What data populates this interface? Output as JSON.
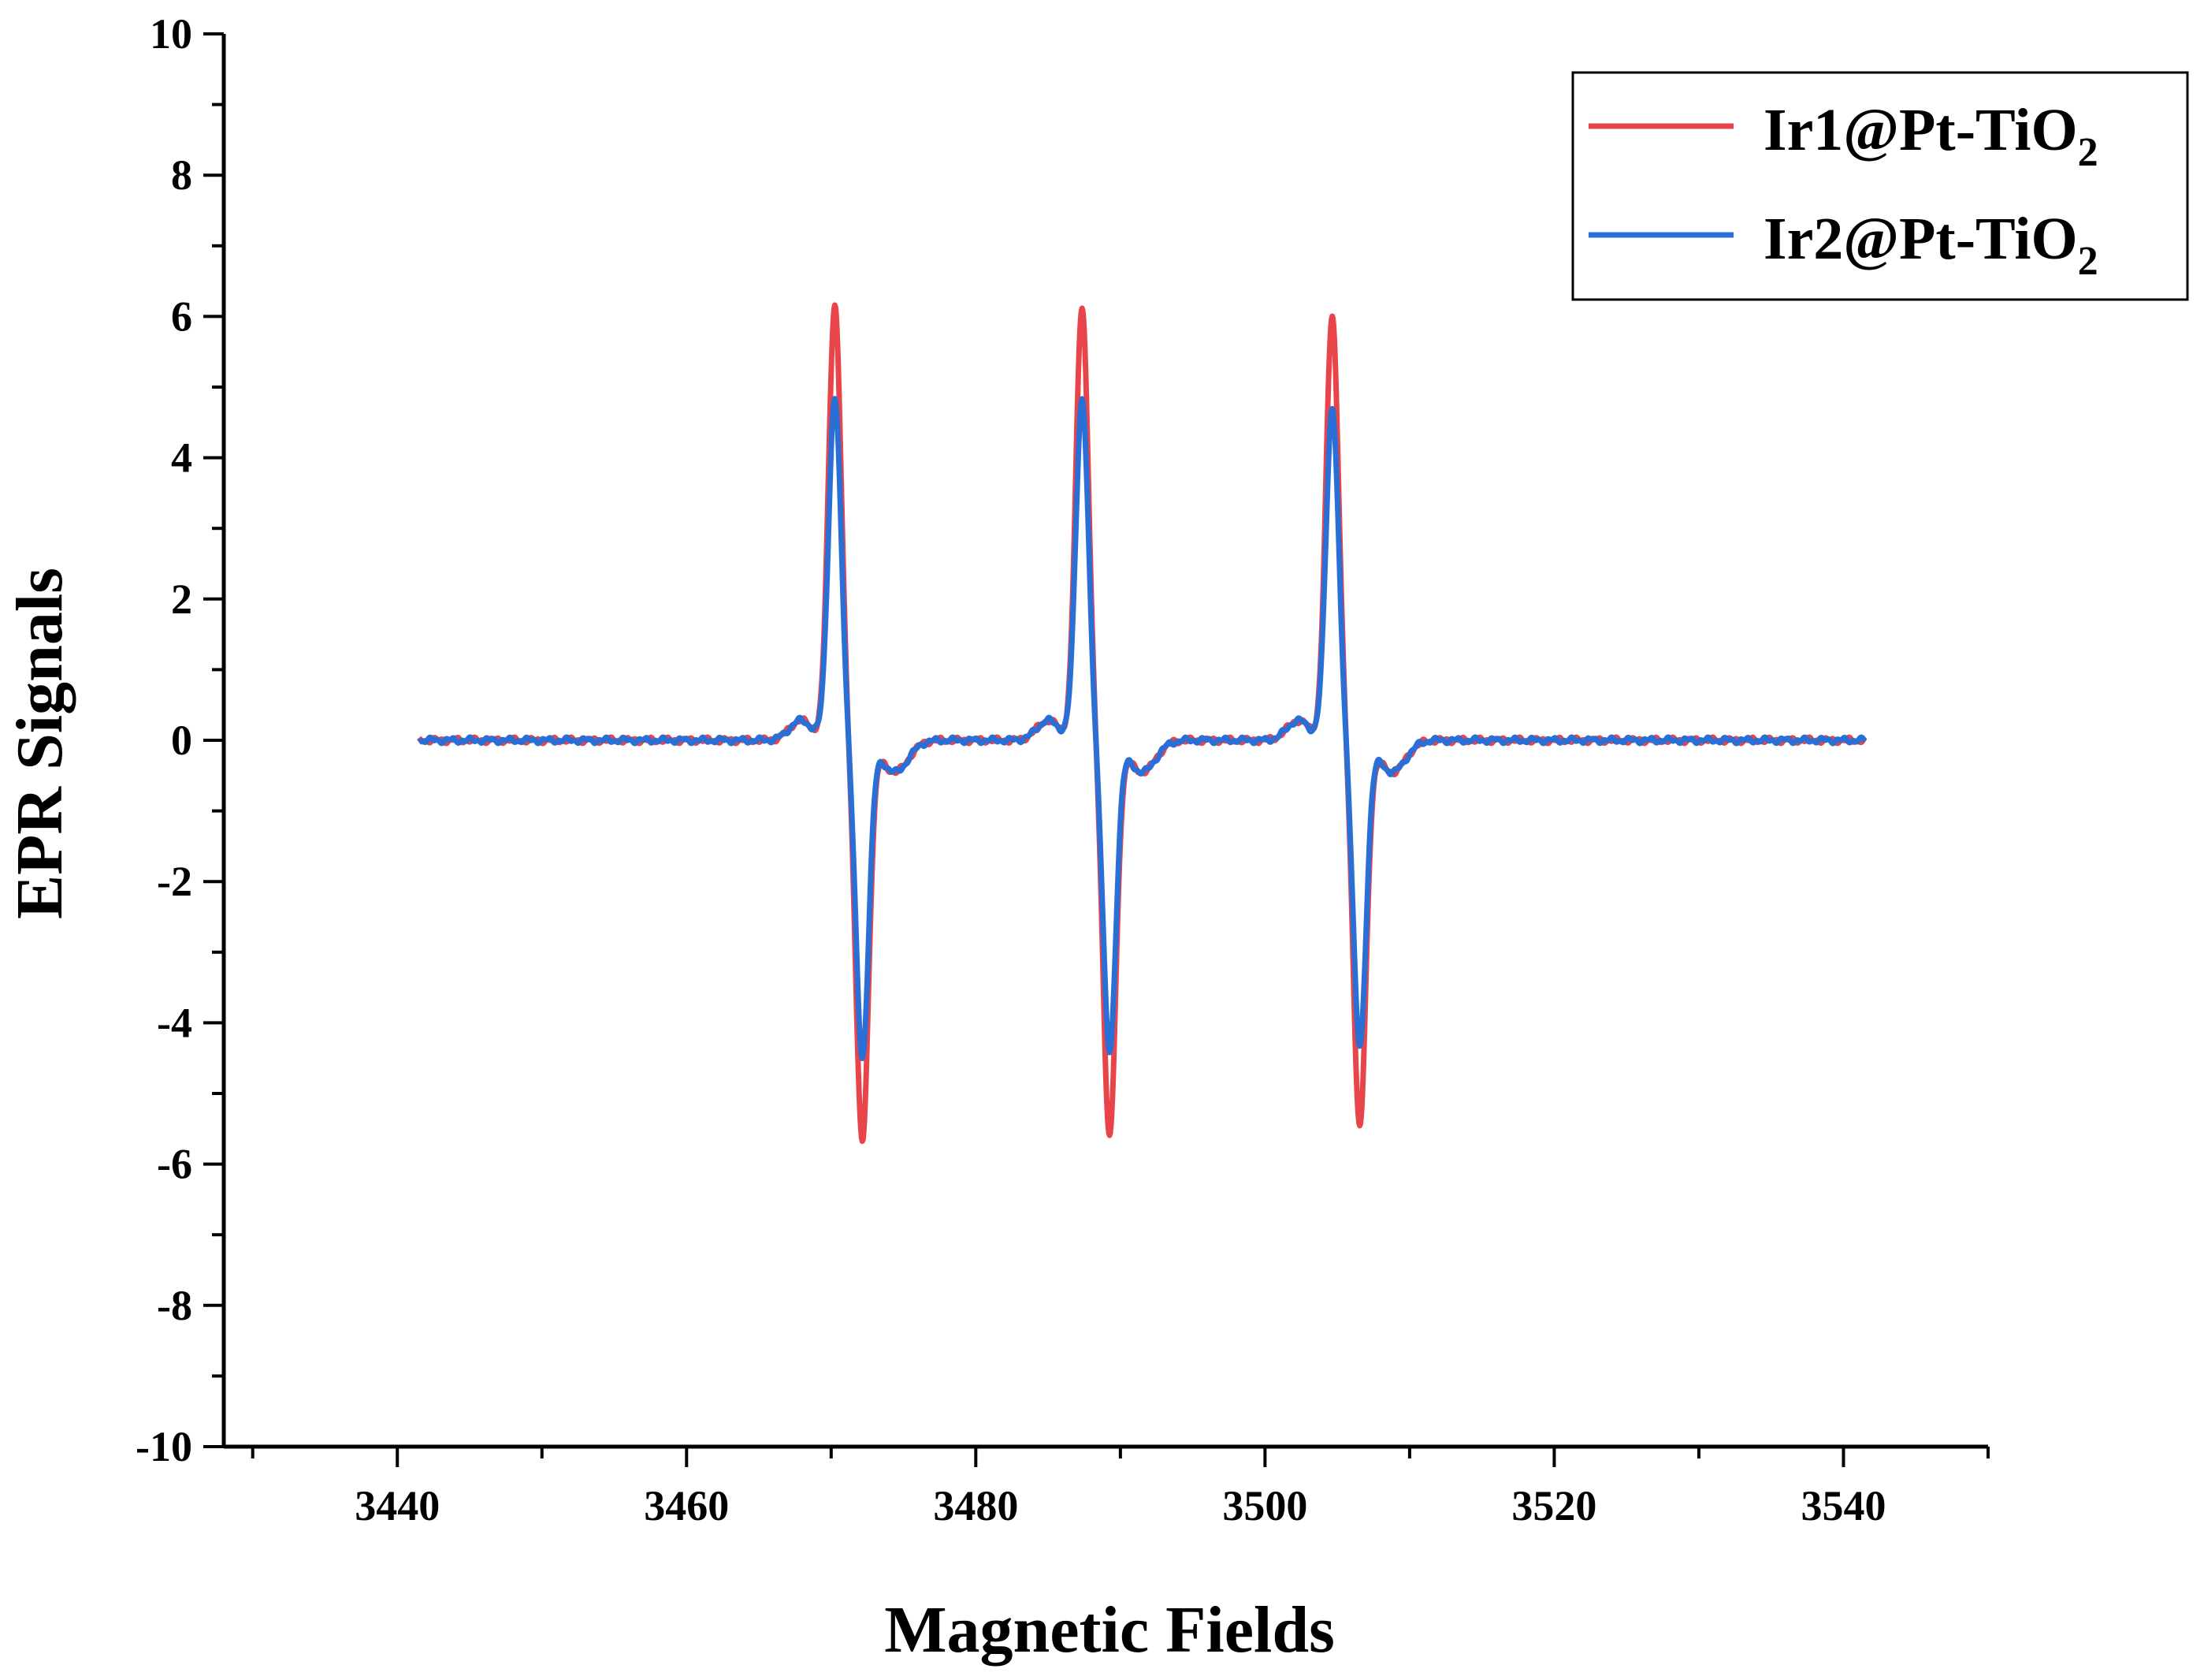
{
  "chart_data": {
    "type": "line",
    "title": "",
    "xlabel": "Magnetic Fields",
    "ylabel": "EPR Signals",
    "xlim": [
      3428,
      3550
    ],
    "ylim": [
      -10,
      10
    ],
    "x_ticks": [
      3440,
      3460,
      3480,
      3500,
      3520,
      3540
    ],
    "y_ticks": [
      -10,
      -8,
      -6,
      -4,
      -2,
      0,
      2,
      4,
      6,
      8,
      10
    ],
    "legend_position": "top-right",
    "grid": false,
    "series": [
      {
        "name": "Ir1@Pt-TiO2",
        "label_main": "Ir1@Pt-TiO",
        "label_sub": "2",
        "color": "#e8454a",
        "peaks": [
          {
            "center": 3471.2,
            "max": 6.17,
            "min": -5.68
          },
          {
            "center": 3488.3,
            "max": 6.15,
            "min": -5.6
          },
          {
            "center": 3505.6,
            "max": 6.02,
            "min": -5.45
          }
        ]
      },
      {
        "name": "Ir2@Pt-TiO2",
        "label_main": "Ir2@Pt-TiO",
        "label_sub": "2",
        "color": "#2a6fd6",
        "peaks": [
          {
            "center": 3471.2,
            "max": 4.83,
            "min": -4.48
          },
          {
            "center": 3488.3,
            "max": 4.83,
            "min": -4.4
          },
          {
            "center": 3505.6,
            "max": 4.71,
            "min": -4.32
          }
        ]
      }
    ],
    "x_range": [
      3441.5,
      3541.5
    ]
  }
}
